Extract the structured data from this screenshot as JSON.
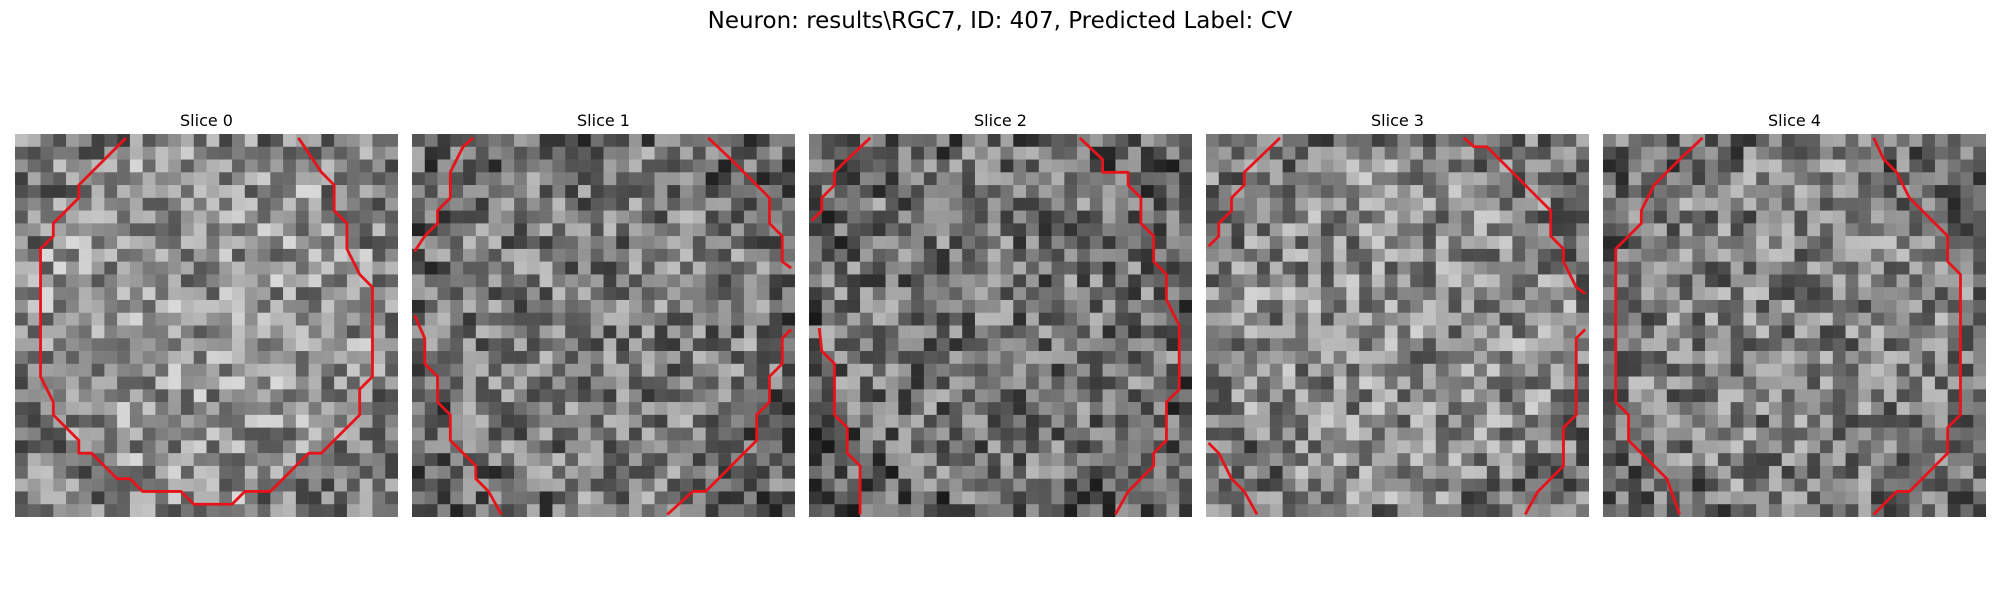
{
  "figure": {
    "title": "Neuron: results\\RGC7, ID: 407, Predicted Label: CV"
  },
  "colors": {
    "contour": "#e8131a",
    "background": "#ffffff"
  },
  "slices": [
    {
      "title": "Slice 0",
      "brightness": 0.58,
      "seed": 11
    },
    {
      "title": "Slice 1",
      "brightness": 0.48,
      "seed": 23
    },
    {
      "title": "Slice 2",
      "brightness": 0.45,
      "seed": 37
    },
    {
      "title": "Slice 3",
      "brightness": 0.55,
      "seed": 41
    },
    {
      "title": "Slice 4",
      "brightness": 0.5,
      "seed": 59
    }
  ]
}
